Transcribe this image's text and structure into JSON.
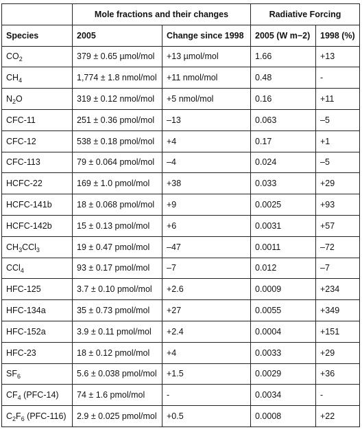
{
  "header": {
    "group_mole": "Mole fractions and their changes",
    "group_forcing": "Radiative Forcing",
    "col_species": "Species",
    "col_2005": "2005",
    "col_change": "Change since 1998",
    "col_rf2005": "2005 (W m−2)",
    "col_rf1998": "1998 (%)"
  },
  "rows": [
    {
      "species_base": "CO",
      "species_sub": "2",
      "species_tail": "",
      "species_suffix": "",
      "mole_2005": "379 ± 0.65 µmol/mol",
      "change": "+13 µmol/mol",
      "rf_2005": "1.66",
      "rf_1998": "+13"
    },
    {
      "species_base": "CH",
      "species_sub": "4",
      "species_tail": "",
      "species_suffix": "",
      "mole_2005": "1,774 ± 1.8 nmol/mol",
      "change": "+11 nmol/mol",
      "rf_2005": "0.48",
      "rf_1998": "-"
    },
    {
      "species_base": "N",
      "species_sub": "2",
      "species_tail": "O",
      "species_suffix": "",
      "mole_2005": "319 ± 0.12 nmol/mol",
      "change": "+5 nmol/mol",
      "rf_2005": "0.16",
      "rf_1998": "+11"
    },
    {
      "species_base": "CFC-11",
      "species_sub": "",
      "species_tail": "",
      "species_suffix": "",
      "mole_2005": "251 ± 0.36 pmol/mol",
      "change": "–13",
      "rf_2005": "0.063",
      "rf_1998": "–5"
    },
    {
      "species_base": "CFC-12",
      "species_sub": "",
      "species_tail": "",
      "species_suffix": "",
      "mole_2005": "538 ± 0.18 pmol/mol",
      "change": "+4",
      "rf_2005": "0.17",
      "rf_1998": "+1"
    },
    {
      "species_base": "CFC-113",
      "species_sub": "",
      "species_tail": "",
      "species_suffix": "",
      "mole_2005": "79 ± 0.064 pmol/mol",
      "change": "–4",
      "rf_2005": "0.024",
      "rf_1998": "–5"
    },
    {
      "species_base": "HCFC-22",
      "species_sub": "",
      "species_tail": "",
      "species_suffix": "",
      "mole_2005": "169 ± 1.0 pmol/mol",
      "change": "+38",
      "rf_2005": "0.033",
      "rf_1998": "+29"
    },
    {
      "species_base": "HCFC-141b",
      "species_sub": "",
      "species_tail": "",
      "species_suffix": "",
      "mole_2005": "18 ± 0.068 pmol/mol",
      "change": "+9",
      "rf_2005": "0.0025",
      "rf_1998": "+93"
    },
    {
      "species_base": "HCFC-142b",
      "species_sub": "",
      "species_tail": "",
      "species_suffix": "",
      "mole_2005": "15 ± 0.13 pmol/mol",
      "change": "+6",
      "rf_2005": "0.0031",
      "rf_1998": "+57"
    },
    {
      "species_base": "CH",
      "species_sub": "3",
      "species_tail": "CCl",
      "species_sub2": "3",
      "species_suffix": "",
      "mole_2005": "19 ± 0.47 pmol/mol",
      "change": "–47",
      "rf_2005": "0.0011",
      "rf_1998": "–72"
    },
    {
      "species_base": "CCl",
      "species_sub": "4",
      "species_tail": "",
      "species_suffix": "",
      "mole_2005": "93 ± 0.17 pmol/mol",
      "change": "–7",
      "rf_2005": "0.012",
      "rf_1998": "–7"
    },
    {
      "species_base": "HFC-125",
      "species_sub": "",
      "species_tail": "",
      "species_suffix": "",
      "mole_2005": "3.7 ± 0.10 pmol/mol",
      "change": "+2.6",
      "rf_2005": "0.0009",
      "rf_1998": "+234"
    },
    {
      "species_base": "HFC-134a",
      "species_sub": "",
      "species_tail": "",
      "species_suffix": "",
      "mole_2005": "35 ± 0.73 pmol/mol",
      "change": "+27",
      "rf_2005": "0.0055",
      "rf_1998": "+349"
    },
    {
      "species_base": "HFC-152a",
      "species_sub": "",
      "species_tail": "",
      "species_suffix": "",
      "mole_2005": "3.9 ± 0.11 pmol/mol",
      "change": "+2.4",
      "rf_2005": "0.0004",
      "rf_1998": "+151"
    },
    {
      "species_base": "HFC-23",
      "species_sub": "",
      "species_tail": "",
      "species_suffix": "",
      "mole_2005": "18 ± 0.12 pmol/mol",
      "change": "+4",
      "rf_2005": "0.0033",
      "rf_1998": "+29"
    },
    {
      "species_base": "SF",
      "species_sub": "6",
      "species_tail": "",
      "species_suffix": "",
      "mole_2005": "5.6 ± 0.038 pmol/mol",
      "change": "+1.5",
      "rf_2005": "0.0029",
      "rf_1998": "+36"
    },
    {
      "species_base": "CF",
      "species_sub": "4",
      "species_tail": "",
      "species_suffix": " (PFC-14)",
      "mole_2005": "74 ± 1.6 pmol/mol",
      "change": "-",
      "rf_2005": "0.0034",
      "rf_1998": "-"
    },
    {
      "species_base": "C",
      "species_sub": "2",
      "species_tail": "F",
      "species_sub2": "6",
      "species_suffix": " (PFC-116)",
      "mole_2005": "2.9 ± 0.025 pmol/mol",
      "change": "+0.5",
      "rf_2005": "0.0008",
      "rf_1998": "+22"
    }
  ]
}
